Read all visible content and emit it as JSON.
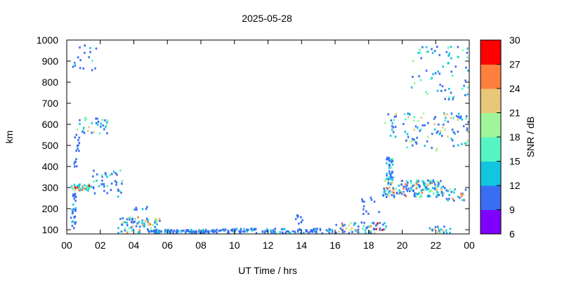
{
  "chart_data": {
    "type": "heatmap",
    "title": "2025-05-28",
    "xlabel": "UT Time / hrs",
    "ylabel": "km",
    "xlim": [
      0,
      24
    ],
    "ylim": [
      80,
      1000
    ],
    "x_ticks": [
      "00",
      "02",
      "04",
      "06",
      "08",
      "10",
      "12",
      "14",
      "16",
      "18",
      "20",
      "22",
      "00"
    ],
    "y_ticks": [
      "100",
      "200",
      "300",
      "400",
      "500",
      "600",
      "700",
      "800",
      "900",
      "1000"
    ],
    "colorbar": {
      "label": "SNR / dB",
      "range": [
        6,
        30
      ],
      "ticks": [
        "6",
        "9",
        "12",
        "15",
        "18",
        "21",
        "24",
        "27",
        "30"
      ],
      "colors": [
        "#7f00ff",
        "#3a6ef2",
        "#12c6e0",
        "#58f5c4",
        "#a0f59a",
        "#e8c878",
        "#ff7f3f",
        "#ff0000"
      ]
    },
    "clusters": [
      {
        "t": [
          0.2,
          0.5
        ],
        "h": [
          90,
          340
        ],
        "n": 30,
        "snr": [
          9,
          15
        ]
      },
      {
        "t": [
          0.3,
          1.5
        ],
        "h": [
          290,
          320
        ],
        "n": 40,
        "snr": [
          12,
          28
        ]
      },
      {
        "t": [
          0.5,
          2.4
        ],
        "h": [
          560,
          640
        ],
        "n": 35,
        "snr": [
          9,
          24
        ]
      },
      {
        "t": [
          0.4,
          0.7
        ],
        "h": [
          400,
          580
        ],
        "n": 16,
        "snr": [
          9,
          12
        ]
      },
      {
        "t": [
          0.3,
          1.8
        ],
        "h": [
          860,
          990
        ],
        "n": 18,
        "snr": [
          9,
          18
        ]
      },
      {
        "t": [
          1.5,
          3.3
        ],
        "h": [
          260,
          390
        ],
        "n": 40,
        "snr": [
          9,
          18
        ]
      },
      {
        "t": [
          3.0,
          5.5
        ],
        "h": [
          90,
          165
        ],
        "n": 80,
        "snr": [
          9,
          27
        ]
      },
      {
        "t": [
          4.0,
          5.0
        ],
        "h": [
          200,
          215
        ],
        "n": 6,
        "snr": [
          9,
          15
        ]
      },
      {
        "t": [
          5.0,
          9.0
        ],
        "h": [
          88,
          105
        ],
        "n": 90,
        "snr": [
          9,
          15
        ]
      },
      {
        "t": [
          9.0,
          16.0
        ],
        "h": [
          88,
          110
        ],
        "n": 110,
        "snr": [
          9,
          15
        ]
      },
      {
        "t": [
          13.6,
          14.0
        ],
        "h": [
          110,
          180
        ],
        "n": 8,
        "snr": [
          9,
          12
        ]
      },
      {
        "t": [
          16.0,
          19.0
        ],
        "h": [
          88,
          140
        ],
        "n": 70,
        "snr": [
          9,
          28
        ]
      },
      {
        "t": [
          17.5,
          18.8
        ],
        "h": [
          180,
          260
        ],
        "n": 12,
        "snr": [
          9,
          12
        ]
      },
      {
        "t": [
          18.8,
          22.5
        ],
        "h": [
          260,
          340
        ],
        "n": 170,
        "snr": [
          9,
          27
        ]
      },
      {
        "t": [
          19.0,
          19.4
        ],
        "h": [
          340,
          450
        ],
        "n": 40,
        "snr": [
          9,
          18
        ]
      },
      {
        "t": [
          18.9,
          24.0
        ],
        "h": [
          480,
          660
        ],
        "n": 110,
        "snr": [
          9,
          24
        ]
      },
      {
        "t": [
          20.5,
          24.0
        ],
        "h": [
          720,
          980
        ],
        "n": 70,
        "snr": [
          9,
          21
        ]
      },
      {
        "t": [
          21.5,
          23.0
        ],
        "h": [
          90,
          120
        ],
        "n": 20,
        "snr": [
          9,
          24
        ]
      },
      {
        "t": [
          22.0,
          24.0
        ],
        "h": [
          240,
          300
        ],
        "n": 30,
        "snr": [
          9,
          27
        ]
      }
    ]
  }
}
